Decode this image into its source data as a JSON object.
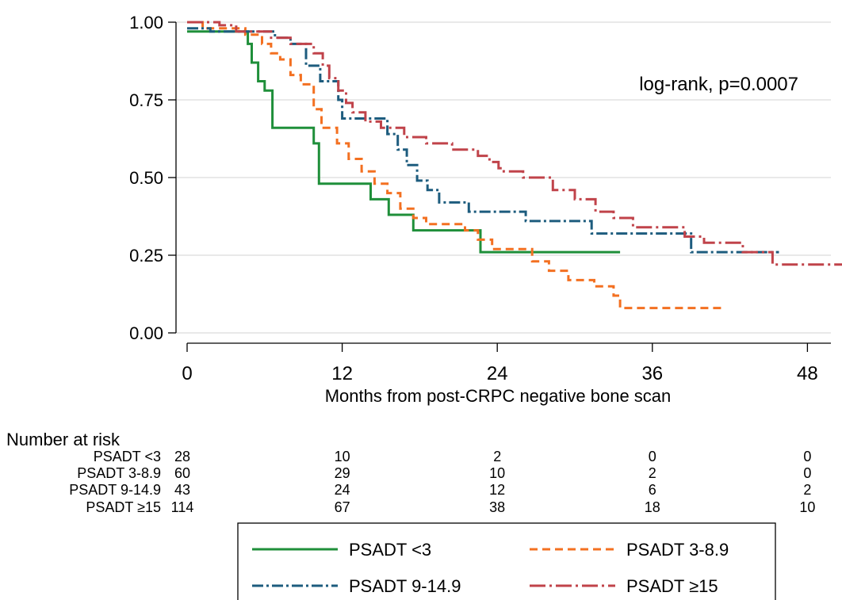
{
  "chart_data": {
    "type": "line",
    "title": "",
    "xlabel": "Months from post-CRPC negative bone scan",
    "ylabel": "",
    "xlim": [
      0,
      52
    ],
    "ylim": [
      0,
      1
    ],
    "x_ticks": [
      0,
      12,
      24,
      36,
      48
    ],
    "x_tick_labels": [
      "0",
      "12",
      "24",
      "36",
      "48"
    ],
    "y_ticks": [
      0,
      0.25,
      0.5,
      0.75,
      1.0
    ],
    "y_tick_labels": [
      "0.00",
      "0.25",
      "0.50",
      "0.75",
      "1.00"
    ],
    "grid": true,
    "annotation": "log-rank, p=0.0007",
    "legend_position": "bottom",
    "series": [
      {
        "name": "PSADT <3",
        "color": "#1f8f3a",
        "dash": "solid",
        "points": [
          [
            0,
            0.97
          ],
          [
            4.7,
            0.97
          ],
          [
            4.7,
            0.93
          ],
          [
            5.0,
            0.93
          ],
          [
            5.0,
            0.87
          ],
          [
            5.5,
            0.87
          ],
          [
            5.5,
            0.81
          ],
          [
            6.0,
            0.81
          ],
          [
            6.0,
            0.78
          ],
          [
            6.6,
            0.78
          ],
          [
            6.6,
            0.66
          ],
          [
            9.8,
            0.66
          ],
          [
            9.8,
            0.61
          ],
          [
            10.2,
            0.61
          ],
          [
            10.2,
            0.48
          ],
          [
            14.2,
            0.48
          ],
          [
            14.2,
            0.43
          ],
          [
            15.6,
            0.43
          ],
          [
            15.6,
            0.38
          ],
          [
            17.5,
            0.38
          ],
          [
            17.5,
            0.33
          ],
          [
            22.7,
            0.33
          ],
          [
            22.7,
            0.26
          ],
          [
            33.5,
            0.26
          ]
        ]
      },
      {
        "name": "PSADT 3-8.9",
        "color": "#f37021",
        "dash": "dash",
        "points": [
          [
            0,
            1.0
          ],
          [
            1.2,
            1.0
          ],
          [
            1.2,
            0.98
          ],
          [
            4.5,
            0.98
          ],
          [
            4.5,
            0.96
          ],
          [
            5.8,
            0.96
          ],
          [
            5.8,
            0.93
          ],
          [
            6.5,
            0.93
          ],
          [
            6.5,
            0.9
          ],
          [
            7.2,
            0.9
          ],
          [
            7.2,
            0.88
          ],
          [
            8.0,
            0.88
          ],
          [
            8.0,
            0.83
          ],
          [
            8.8,
            0.83
          ],
          [
            8.8,
            0.8
          ],
          [
            9.8,
            0.8
          ],
          [
            9.8,
            0.72
          ],
          [
            10.4,
            0.72
          ],
          [
            10.4,
            0.66
          ],
          [
            11.6,
            0.66
          ],
          [
            11.6,
            0.61
          ],
          [
            12.5,
            0.61
          ],
          [
            12.5,
            0.56
          ],
          [
            13.5,
            0.56
          ],
          [
            13.5,
            0.52
          ],
          [
            14.5,
            0.52
          ],
          [
            14.5,
            0.48
          ],
          [
            15.5,
            0.48
          ],
          [
            15.5,
            0.45
          ],
          [
            16.5,
            0.45
          ],
          [
            16.5,
            0.4
          ],
          [
            17.5,
            0.4
          ],
          [
            17.5,
            0.37
          ],
          [
            18.5,
            0.37
          ],
          [
            18.5,
            0.35
          ],
          [
            21.5,
            0.35
          ],
          [
            21.5,
            0.33
          ],
          [
            22.5,
            0.33
          ],
          [
            22.5,
            0.3
          ],
          [
            23.6,
            0.3
          ],
          [
            23.6,
            0.27
          ],
          [
            26.7,
            0.27
          ],
          [
            26.7,
            0.23
          ],
          [
            28.0,
            0.23
          ],
          [
            28.0,
            0.2
          ],
          [
            29.5,
            0.2
          ],
          [
            29.5,
            0.17
          ],
          [
            31.5,
            0.17
          ],
          [
            31.5,
            0.15
          ],
          [
            33.0,
            0.15
          ],
          [
            33.0,
            0.12
          ],
          [
            33.5,
            0.12
          ],
          [
            33.5,
            0.08
          ],
          [
            41.5,
            0.08
          ]
        ]
      },
      {
        "name": "PSADT 9-14.9",
        "color": "#1d5c7e",
        "dash": "dashdot",
        "points": [
          [
            0,
            0.98
          ],
          [
            1.8,
            0.98
          ],
          [
            1.8,
            0.97
          ],
          [
            6.8,
            0.97
          ],
          [
            6.8,
            0.95
          ],
          [
            8.0,
            0.95
          ],
          [
            8.0,
            0.93
          ],
          [
            9.2,
            0.93
          ],
          [
            9.2,
            0.86
          ],
          [
            10.3,
            0.86
          ],
          [
            10.3,
            0.81
          ],
          [
            11.7,
            0.81
          ],
          [
            11.7,
            0.75
          ],
          [
            12.0,
            0.75
          ],
          [
            12.0,
            0.69
          ],
          [
            15.5,
            0.69
          ],
          [
            15.5,
            0.64
          ],
          [
            16.3,
            0.64
          ],
          [
            16.3,
            0.59
          ],
          [
            17.0,
            0.59
          ],
          [
            17.0,
            0.54
          ],
          [
            17.8,
            0.54
          ],
          [
            17.8,
            0.49
          ],
          [
            18.6,
            0.49
          ],
          [
            18.6,
            0.46
          ],
          [
            19.5,
            0.46
          ],
          [
            19.5,
            0.42
          ],
          [
            21.8,
            0.42
          ],
          [
            21.8,
            0.39
          ],
          [
            26.2,
            0.39
          ],
          [
            26.2,
            0.36
          ],
          [
            31.3,
            0.36
          ],
          [
            31.3,
            0.32
          ],
          [
            39.0,
            0.32
          ],
          [
            39.0,
            0.26
          ],
          [
            45.8,
            0.26
          ]
        ]
      },
      {
        "name": "PSADT ≥15",
        "color": "#c0434a",
        "dash": "longdashdot",
        "points": [
          [
            0,
            1.0
          ],
          [
            2.5,
            1.0
          ],
          [
            2.5,
            0.99
          ],
          [
            3.8,
            0.99
          ],
          [
            3.8,
            0.97
          ],
          [
            6.5,
            0.97
          ],
          [
            6.5,
            0.95
          ],
          [
            8.0,
            0.95
          ],
          [
            8.0,
            0.93
          ],
          [
            9.8,
            0.93
          ],
          [
            9.8,
            0.9
          ],
          [
            10.5,
            0.9
          ],
          [
            10.5,
            0.86
          ],
          [
            11.0,
            0.86
          ],
          [
            11.0,
            0.82
          ],
          [
            11.7,
            0.82
          ],
          [
            11.7,
            0.78
          ],
          [
            12.3,
            0.78
          ],
          [
            12.3,
            0.74
          ],
          [
            12.8,
            0.74
          ],
          [
            12.8,
            0.71
          ],
          [
            13.8,
            0.71
          ],
          [
            13.8,
            0.68
          ],
          [
            15.0,
            0.68
          ],
          [
            15.0,
            0.66
          ],
          [
            16.8,
            0.66
          ],
          [
            16.8,
            0.63
          ],
          [
            18.5,
            0.63
          ],
          [
            18.5,
            0.61
          ],
          [
            20.5,
            0.61
          ],
          [
            20.5,
            0.59
          ],
          [
            22.5,
            0.59
          ],
          [
            22.5,
            0.57
          ],
          [
            23.4,
            0.57
          ],
          [
            23.4,
            0.55
          ],
          [
            24.1,
            0.55
          ],
          [
            24.1,
            0.53
          ],
          [
            24.5,
            0.53
          ],
          [
            24.5,
            0.52
          ],
          [
            26.0,
            0.52
          ],
          [
            26.0,
            0.5
          ],
          [
            28.3,
            0.5
          ],
          [
            28.3,
            0.46
          ],
          [
            30.0,
            0.46
          ],
          [
            30.0,
            0.43
          ],
          [
            31.6,
            0.43
          ],
          [
            31.6,
            0.39
          ],
          [
            33.0,
            0.39
          ],
          [
            33.0,
            0.37
          ],
          [
            34.5,
            0.37
          ],
          [
            34.5,
            0.34
          ],
          [
            38.5,
            0.34
          ],
          [
            38.5,
            0.31
          ],
          [
            40.0,
            0.31
          ],
          [
            40.0,
            0.29
          ],
          [
            43.0,
            0.29
          ],
          [
            43.0,
            0.26
          ],
          [
            45.3,
            0.26
          ],
          [
            45.3,
            0.22
          ],
          [
            51.0,
            0.22
          ],
          [
            51.0,
            0.19
          ]
        ]
      }
    ],
    "risk_table": {
      "title": "Number at risk",
      "rows": [
        {
          "label": "PSADT <3",
          "counts": [
            "28",
            "10",
            "2",
            "0",
            "0"
          ]
        },
        {
          "label": "PSADT 3-8.9",
          "counts": [
            "60",
            "29",
            "10",
            "2",
            "0"
          ]
        },
        {
          "label": "PSADT 9-14.9",
          "counts": [
            "43",
            "24",
            "12",
            "6",
            "2"
          ]
        },
        {
          "label": "PSADT ≥15",
          "counts": [
            "114",
            "67",
            "38",
            "18",
            "10"
          ]
        }
      ]
    }
  }
}
